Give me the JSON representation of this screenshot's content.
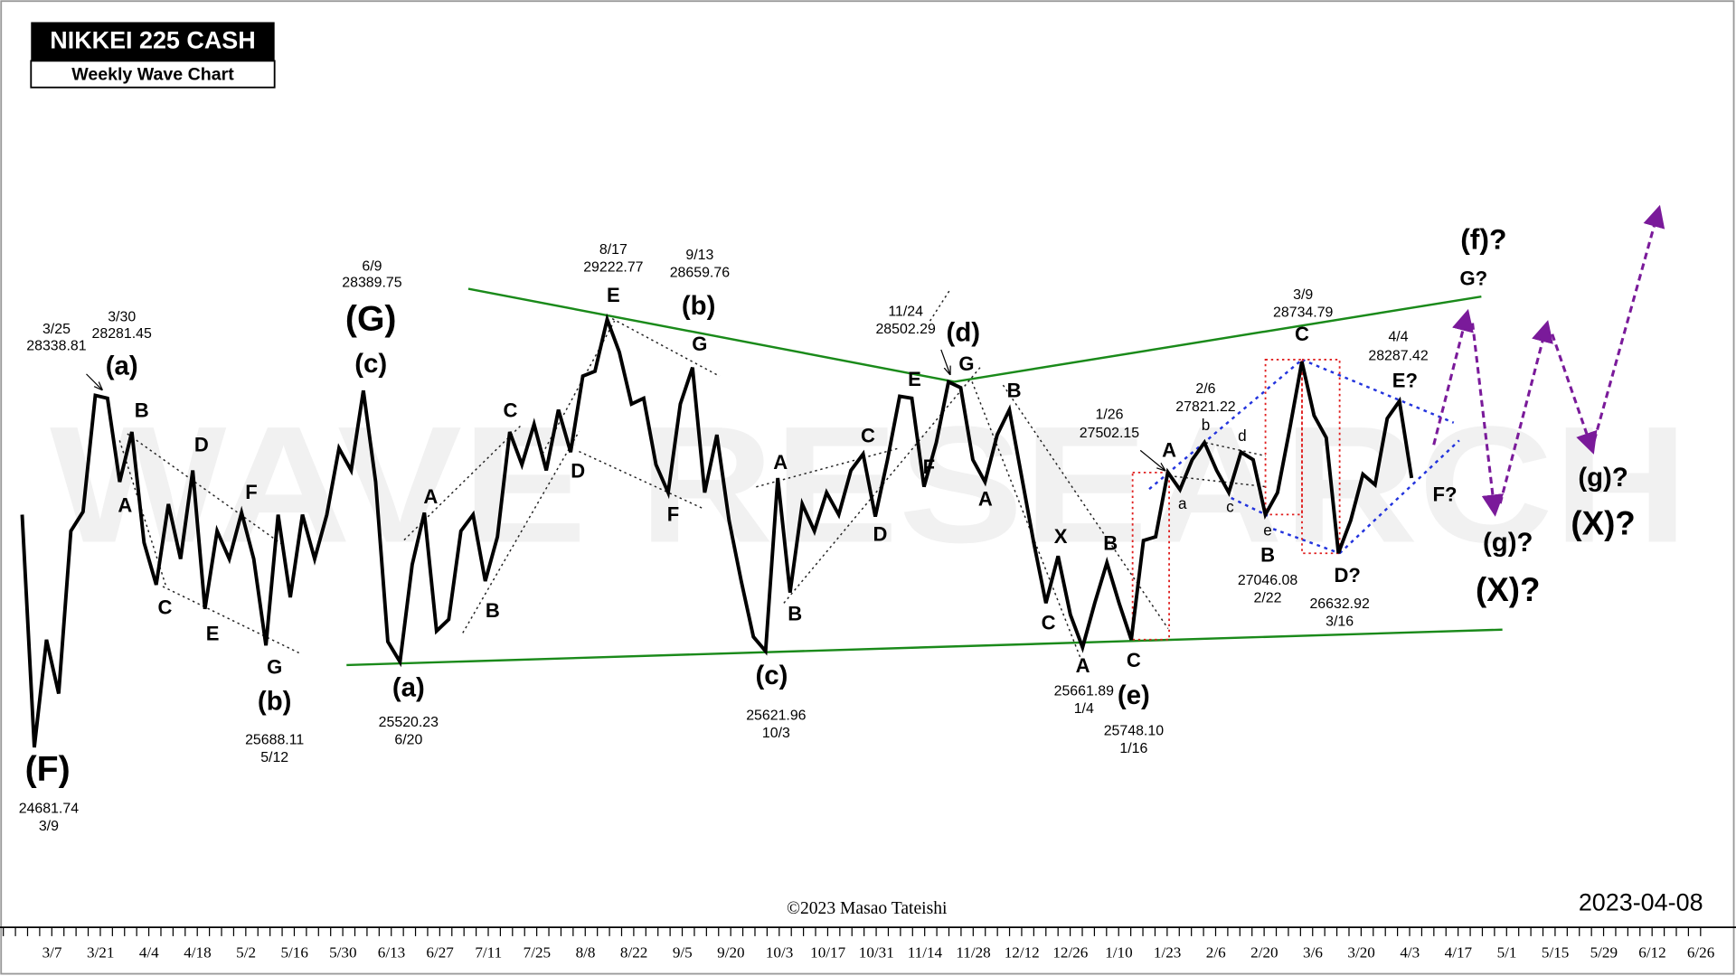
{
  "chart_data": {
    "type": "line",
    "title": "NIKKEI 225 CASH",
    "subtitle": "Weekly Wave Chart",
    "watermark": "WAVE RESEARCH",
    "copyright": "©2023 Masao Tateishi",
    "date": "2023-04-08",
    "color": "#000000",
    "ylim": [
      22810,
      32450
    ],
    "xticks": [
      "3/7",
      "3/21",
      "4/4",
      "4/18",
      "5/2",
      "5/16",
      "5/30",
      "6/13",
      "6/27",
      "7/11",
      "7/25",
      "8/8",
      "8/22",
      "9/5",
      "9/20",
      "10/3",
      "10/17",
      "10/31",
      "11/14",
      "11/28",
      "12/12",
      "12/26",
      "1/10",
      "1/23",
      "2/6",
      "2/20",
      "3/6",
      "3/20",
      "4/3",
      "4/17",
      "5/1",
      "5/15",
      "5/29",
      "6/12",
      "6/26"
    ],
    "values": [
      27100,
      24680,
      25800,
      25240,
      26930,
      27130,
      28340,
      28310,
      27440,
      27960,
      26810,
      26370,
      27210,
      26640,
      27560,
      26120,
      26930,
      26640,
      27120,
      26640,
      25740,
      27100,
      26240,
      27100,
      26640,
      27100,
      27790,
      27560,
      28390,
      27440,
      25780,
      25570,
      26580,
      27120,
      25890,
      26010,
      26930,
      27100,
      26410,
      26870,
      27960,
      27620,
      28040,
      27560,
      28190,
      27750,
      28540,
      28590,
      29130,
      28790,
      28250,
      28310,
      27620,
      27330,
      28250,
      28630,
      27330,
      27930,
      27040,
      26410,
      25830,
      25680,
      27480,
      26290,
      27210,
      26930,
      27330,
      27100,
      27560,
      27730,
      27080,
      27670,
      28330,
      28310,
      27390,
      27850,
      28480,
      28420,
      27670,
      27440,
      27930,
      28190,
      27500,
      26810,
      26180,
      26670,
      26060,
      25720,
      26180,
      26600,
      26180,
      25800,
      26830,
      26870,
      27540,
      27360,
      27670,
      27850,
      27560,
      27330,
      27750,
      27670,
      27100,
      27330,
      27990,
      28690,
      28130,
      27900,
      26700,
      27040,
      27520,
      27410,
      28100,
      28280,
      27480
    ],
    "annotations": [
      "(F)",
      "24681.74",
      "3/9",
      "3/25",
      "28338.81",
      "3/30",
      "28281.45",
      "(a)",
      "B",
      "A",
      "C",
      "D",
      "E",
      "F",
      "G",
      "(b)",
      "25688.11",
      "5/12",
      "6/9",
      "28389.75",
      "(G)",
      "(c)",
      "(a)",
      "25520.23",
      "6/20",
      "A",
      "B",
      "C",
      "D",
      "8/17",
      "29222.77",
      "E",
      "9/13",
      "28659.76",
      "(b)",
      "G",
      "F",
      "A",
      "B",
      "(c)",
      "25621.96",
      "10/3",
      "C",
      "D",
      "E",
      "F",
      "11/24",
      "28502.29",
      "(d)",
      "G",
      "B",
      "A",
      "X",
      "C",
      "B",
      "A",
      "25661.89",
      "1/4",
      "C",
      "(e)",
      "25748.10",
      "1/16",
      "1/26",
      "27502.15",
      "A",
      "a",
      "2/6",
      "27821.22",
      "b",
      "c",
      "d",
      "e",
      "B",
      "27046.08",
      "2/22",
      "3/9",
      "28734.79",
      "C",
      "D?",
      "26632.92",
      "3/16",
      "4/4",
      "28287.42",
      "E?",
      "F?",
      "(f)?",
      "G?",
      "(g)?",
      "(X)?",
      "(g)?",
      "(X)?"
    ]
  }
}
